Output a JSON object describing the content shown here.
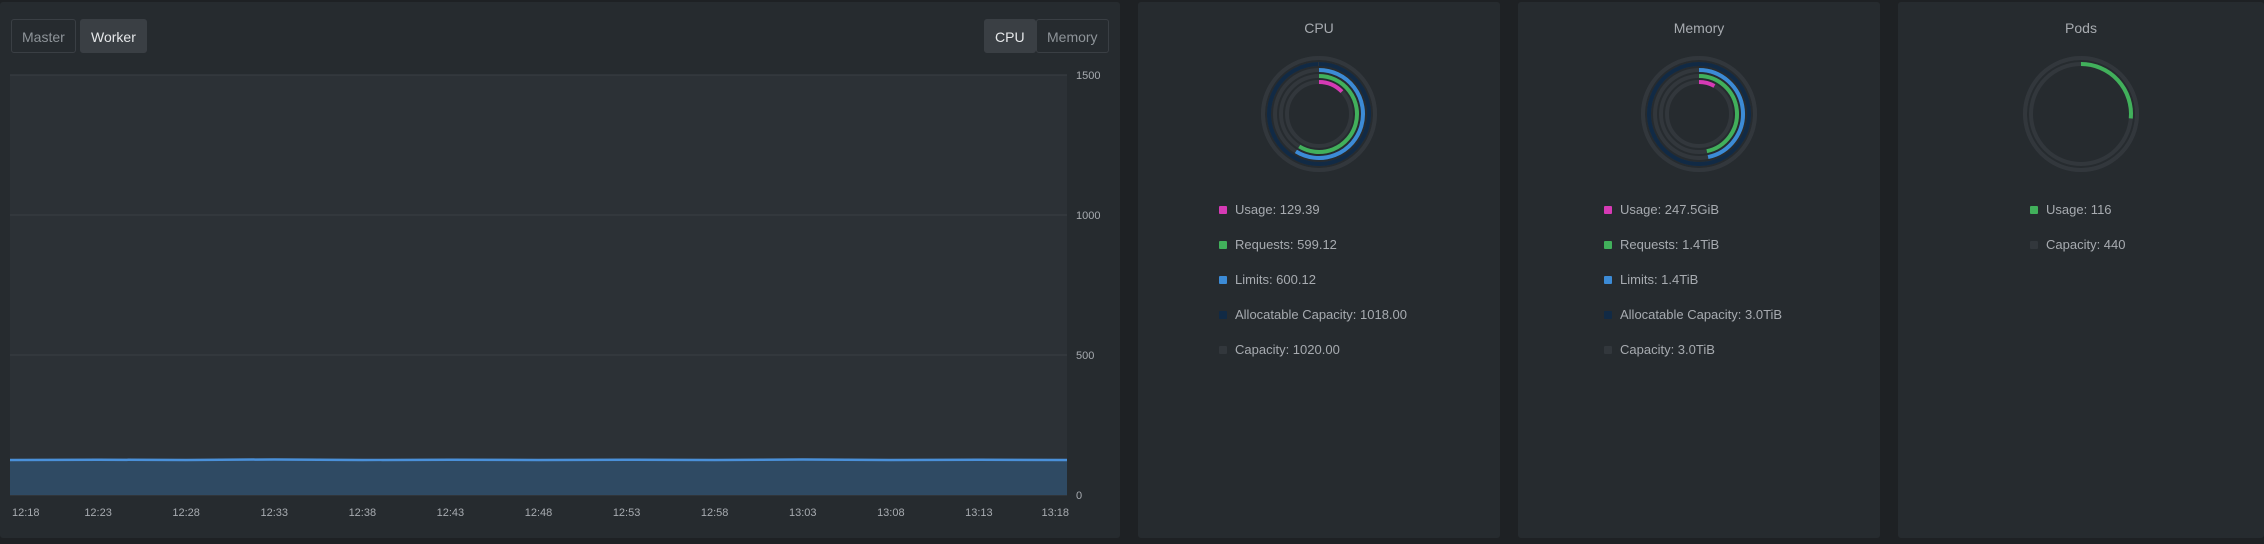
{
  "node_tabs": [
    {
      "label": "Master",
      "active": false
    },
    {
      "label": "Worker",
      "active": true
    }
  ],
  "metric_tabs": [
    {
      "label": "CPU",
      "active": true
    },
    {
      "label": "Memory",
      "active": false
    }
  ],
  "chart_data": {
    "type": "area",
    "x": [
      "12:18",
      "12:23",
      "12:28",
      "12:33",
      "12:38",
      "12:43",
      "12:48",
      "12:53",
      "12:58",
      "13:03",
      "13:08",
      "13:13",
      "13:18"
    ],
    "series": [
      {
        "values": [
          125,
          126,
          125,
          127,
          125,
          126,
          125,
          126,
          125,
          127,
          125,
          126,
          125
        ],
        "color": "#4a90d9"
      }
    ],
    "yticks": [
      0,
      500,
      1000,
      1500
    ],
    "ylim": [
      0,
      1500
    ],
    "grid": true
  },
  "donuts": [
    {
      "title": "CPU",
      "rings": [
        {
          "color": "#d63ab5",
          "fraction": 0.127
        },
        {
          "color": "#41b05b",
          "fraction": 0.587
        },
        {
          "color": "#3c8bd6",
          "fraction": 0.588
        },
        {
          "color": "#112a45",
          "fraction": 0.998
        },
        {
          "color": "#32373c",
          "fraction": 1
        }
      ],
      "legend": [
        {
          "label": "Usage: 129.39",
          "color": "#d63ab5"
        },
        {
          "label": "Requests: 599.12",
          "color": "#41b05b"
        },
        {
          "label": "Limits: 600.12",
          "color": "#3c8bd6"
        },
        {
          "label": "Allocatable Capacity: 1018.00",
          "color": "#112a45"
        },
        {
          "label": "Capacity: 1020.00",
          "color": "#32373c"
        }
      ]
    },
    {
      "title": "Memory",
      "rings": [
        {
          "color": "#d63ab5",
          "fraction": 0.08
        },
        {
          "color": "#41b05b",
          "fraction": 0.467
        },
        {
          "color": "#3c8bd6",
          "fraction": 0.467
        },
        {
          "color": "#112a45",
          "fraction": 1
        },
        {
          "color": "#32373c",
          "fraction": 1
        }
      ],
      "legend": [
        {
          "label": "Usage: 247.5GiB",
          "color": "#d63ab5"
        },
        {
          "label": "Requests: 1.4TiB",
          "color": "#41b05b"
        },
        {
          "label": "Limits: 1.4TiB",
          "color": "#3c8bd6"
        },
        {
          "label": "Allocatable Capacity: 3.0TiB",
          "color": "#112a45"
        },
        {
          "label": "Capacity: 3.0TiB",
          "color": "#32373c"
        }
      ]
    },
    {
      "title": "Pods",
      "rings": [
        {
          "color": "#41b05b",
          "fraction": 0.264
        },
        {
          "color": "#32373c",
          "fraction": 1
        }
      ],
      "legend": [
        {
          "label": "Usage: 116",
          "color": "#41b05b"
        },
        {
          "label": "Capacity: 440",
          "color": "#32373c"
        }
      ]
    }
  ]
}
